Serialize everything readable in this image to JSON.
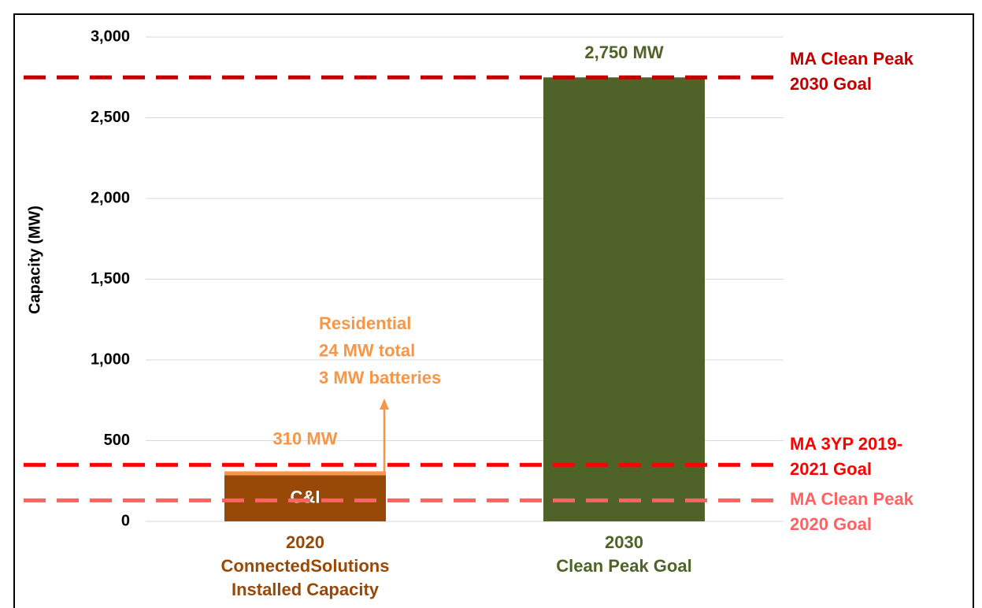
{
  "chart_data": {
    "type": "bar",
    "stacked": true,
    "y_label": "Capacity (MW)",
    "categories": [
      [
        "2020",
        "ConnectedSolutions",
        "Installed Capacity"
      ],
      [
        "2030",
        "Clean Peak Goal"
      ]
    ],
    "category_colors": [
      "#984807",
      "#4f6228"
    ],
    "series": [
      {
        "name": "C&I",
        "color": "#984807",
        "values": [
          286,
          null
        ]
      },
      {
        "color": "#f79646",
        "values": [
          24,
          null
        ]
      },
      {
        "color": "#4f6228",
        "values": [
          null,
          2750
        ]
      }
    ],
    "totals": [
      310,
      2750
    ],
    "total_labels": [
      "310 MW",
      "2,750 MW"
    ],
    "total_label_colors": [
      "#f79646",
      "#4f6228"
    ],
    "annotation": {
      "lines": [
        "Residential",
        "24 MW total",
        "3 MW batteries"
      ],
      "color": "#f79646"
    },
    "reference_lines": [
      {
        "value": 2750,
        "label": [
          "MA Clean Peak",
          "2030 Goal"
        ],
        "color": "#c00000"
      },
      {
        "value": 350,
        "label": [
          "MA 3YP 2019-",
          "2021 Goal"
        ],
        "color": "#ff0000"
      },
      {
        "value": 130,
        "label": [
          "MA Clean Peak",
          "2020 Goal"
        ],
        "color": "#ff6262"
      }
    ],
    "ylim": [
      0,
      3000
    ],
    "yticks": [
      0,
      500,
      {
        "value": 1000,
        "label": "1,000"
      },
      {
        "value": 1500,
        "label": "1,500"
      },
      {
        "value": 2000,
        "label": "2,000"
      },
      {
        "value": 2500,
        "label": "2,500"
      },
      {
        "value": 3000,
        "label": "3,000"
      }
    ],
    "grid": true
  }
}
